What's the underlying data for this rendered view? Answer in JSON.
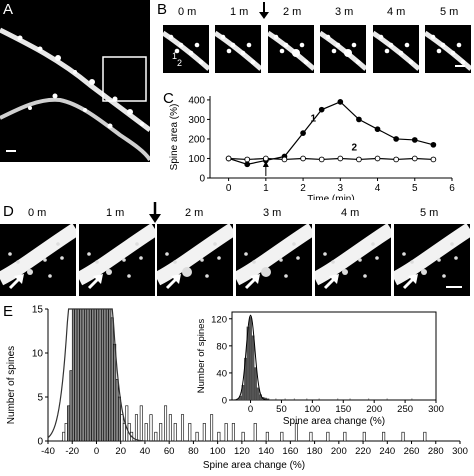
{
  "panels": {
    "a": {
      "letter": "A"
    },
    "b": {
      "letter": "B",
      "time_labels": [
        "0 m",
        "1 m",
        "2 m",
        "3 m",
        "4 m",
        "5 m"
      ],
      "spine_labels": [
        "1",
        "2"
      ]
    },
    "c": {
      "letter": "C"
    },
    "d": {
      "letter": "D",
      "time_labels": [
        "0 m",
        "1 m",
        "2 m",
        "3 m",
        "4 m",
        "5 m"
      ]
    },
    "e": {
      "letter": "E"
    }
  },
  "colors": {
    "image_bg": "#000000",
    "bar_fill": "#555555",
    "bar_outline_fill": "#ffffff"
  },
  "chart_data": [
    {
      "id": "C",
      "type": "line",
      "xlabel": "Time (min)",
      "ylabel": "Spine area (%)",
      "xlim": [
        -0.5,
        6
      ],
      "ylim": [
        0,
        420
      ],
      "xticks": [
        0,
        1,
        2,
        3,
        4,
        5,
        6
      ],
      "yticks": [
        0,
        100,
        200,
        300,
        400
      ],
      "series": [
        {
          "name": "1",
          "marker": "filled",
          "x": [
            0,
            0.5,
            1,
            1.5,
            2,
            2.5,
            3,
            3.5,
            4,
            4.5,
            5,
            5.5
          ],
          "y": [
            100,
            70,
            90,
            110,
            230,
            350,
            390,
            300,
            250,
            200,
            195,
            170
          ]
        },
        {
          "name": "2",
          "marker": "open",
          "x": [
            0,
            0.5,
            1,
            1.5,
            2,
            2.5,
            3,
            3.5,
            4,
            4.5,
            5,
            5.5
          ],
          "y": [
            100,
            95,
            100,
            95,
            100,
            95,
            100,
            95,
            100,
            95,
            100,
            95
          ]
        }
      ],
      "annotation": "stimulus arrow at 1 min"
    },
    {
      "id": "E",
      "type": "bar",
      "xlabel": "Spine area change (%)",
      "ylabel": "Number of spines",
      "xlim": [
        -40,
        300
      ],
      "ylim": [
        0,
        15
      ],
      "xticks": [
        -40,
        -20,
        0,
        20,
        40,
        60,
        80,
        100,
        120,
        140,
        160,
        180,
        200,
        220,
        240,
        260,
        280,
        300
      ],
      "yticks": [
        0,
        5,
        10,
        15
      ],
      "bin_width": 2,
      "bin_centers": [
        -27,
        -25,
        -23,
        -21,
        -19,
        -17,
        -15,
        -13,
        -11,
        -9,
        -7,
        -5,
        -3,
        -1,
        1,
        3,
        5,
        7,
        9,
        11,
        13,
        15,
        17,
        19,
        21,
        23,
        25,
        27,
        29,
        33,
        37,
        41,
        45,
        49,
        53,
        57,
        61,
        65,
        71,
        77,
        83,
        89,
        95,
        101,
        107,
        113,
        121,
        131,
        141,
        153,
        165,
        177,
        191,
        205,
        221,
        237,
        253,
        271
      ],
      "counts": [
        1,
        2,
        4,
        8,
        15,
        15,
        15,
        15,
        15,
        15,
        15,
        15,
        15,
        15,
        15,
        15,
        15,
        15,
        15,
        15,
        14,
        11,
        7,
        5,
        3,
        2,
        4,
        2,
        1,
        3,
        4,
        2,
        3,
        1,
        2,
        4,
        3,
        2,
        3,
        2,
        1,
        2,
        3,
        1,
        2,
        2,
        1,
        2,
        1,
        1,
        2,
        1,
        1,
        1,
        1,
        1,
        1,
        1
      ],
      "fit": "gaussian",
      "inset": {
        "type": "bar",
        "xlabel": "Spine area change (%)",
        "ylabel": "Number of spines",
        "xlim": [
          -30,
          300
        ],
        "ylim": [
          0,
          130
        ],
        "xticks": [
          0,
          50,
          100,
          150,
          200,
          250,
          300
        ],
        "yticks": [
          0,
          40,
          80,
          120
        ],
        "bin_centers": [
          -20,
          -16,
          -12,
          -8,
          -4,
          0,
          4,
          8,
          12,
          16,
          20,
          24,
          28
        ],
        "counts": [
          2,
          6,
          22,
          62,
          108,
          122,
          95,
          48,
          18,
          8,
          4,
          3,
          2
        ],
        "tail_bins": [
          40,
          55,
          70,
          90,
          110,
          140,
          160,
          190,
          220,
          260
        ],
        "fit": "gaussian"
      }
    }
  ]
}
